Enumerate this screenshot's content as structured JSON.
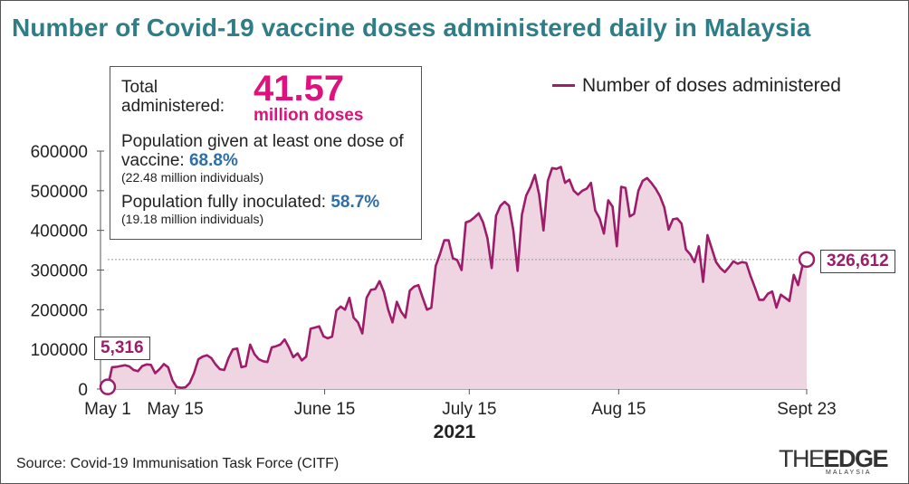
{
  "title": "Number of Covid-19 vaccine doses administered daily in Malaysia",
  "info_box": {
    "total_label": "Total administered:",
    "total_value": "41.57",
    "total_unit": "million doses",
    "one_dose_text": "Population given at least one dose of vaccine:",
    "one_dose_pct": "68.8%",
    "one_dose_sub": "(22.48 million individuals)",
    "full_text": "Population fully inoculated:",
    "full_pct": "58.7%",
    "full_sub": "(19.18 million individuals)"
  },
  "legend_label": "Number of doses administered",
  "callouts": {
    "start": "5,316",
    "end": "326,612"
  },
  "year_label": "2021",
  "source": "Source: Covid-19 Immunisation Task Force (CITF)",
  "logo": {
    "main": "THEEDGE",
    "sub": "MALAYSIA"
  },
  "colors": {
    "title": "#2f7d86",
    "line": "#9d1d6b",
    "fill": "#efd5e1",
    "highlight": "#e0117f",
    "pct": "#2f6ea8"
  },
  "chart_data": {
    "type": "area",
    "title": "Number of Covid-19 vaccine doses administered daily in Malaysia",
    "xlabel": "2021",
    "ylabel": "",
    "x_ticks": [
      "May 1",
      "May 15",
      "June 15",
      "July 15",
      "Aug 15",
      "Sept 23"
    ],
    "y_ticks": [
      "0",
      "100000",
      "200000",
      "300000",
      "400000",
      "500000",
      "600000"
    ],
    "ylim": [
      0,
      600000
    ],
    "reference_line": 326612,
    "grid": false,
    "legend_position": "top-right",
    "series": [
      {
        "name": "Number of doses administered",
        "x_start": "2021-05-01",
        "x_end": "2021-09-23",
        "values": [
          5316,
          55000,
          56000,
          58000,
          60000,
          57000,
          48000,
          45000,
          58000,
          62000,
          61000,
          40000,
          50000,
          63000,
          55000,
          22000,
          5000,
          3000,
          4000,
          15000,
          40000,
          75000,
          82000,
          85000,
          78000,
          62000,
          50000,
          48000,
          78000,
          100000,
          102000,
          55000,
          58000,
          112000,
          88000,
          75000,
          70000,
          68000,
          105000,
          108000,
          112000,
          125000,
          105000,
          80000,
          90000,
          72000,
          82000,
          152000,
          155000,
          158000,
          133000,
          128000,
          132000,
          198000,
          208000,
          200000,
          230000,
          180000,
          168000,
          140000,
          230000,
          250000,
          252000,
          272000,
          245000,
          200000,
          168000,
          220000,
          195000,
          180000,
          248000,
          258000,
          262000,
          230000,
          200000,
          205000,
          310000,
          340000,
          375000,
          375000,
          330000,
          325000,
          300000,
          420000,
          424000,
          433000,
          443000,
          420000,
          380000,
          305000,
          437000,
          462000,
          472000,
          462000,
          400000,
          298000,
          440000,
          488000,
          510000,
          540000,
          490000,
          400000,
          525000,
          557000,
          555000,
          560000,
          520000,
          528000,
          500000,
          490000,
          500000,
          505000,
          520000,
          450000,
          430000,
          392000,
          476000,
          460000,
          360000,
          510000,
          507000,
          435000,
          442000,
          500000,
          525000,
          532000,
          520000,
          505000,
          486000,
          458000,
          402000,
          428000,
          430000,
          417000,
          352000,
          340000,
          320000,
          360000,
          270000,
          388000,
          354000,
          320000,
          305000,
          295000,
          307000,
          322000,
          316000,
          320000,
          318000,
          285000,
          256000,
          225000,
          225000,
          240000,
          246000,
          205000,
          238000,
          230000,
          222000,
          288000,
          262000,
          310000,
          326612
        ]
      }
    ]
  }
}
